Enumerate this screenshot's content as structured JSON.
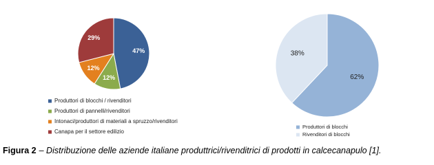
{
  "chart_data": [
    {
      "type": "pie",
      "categories": [
        "Produttori di blocchi / rivenditori",
        "Produttori di pannelli/rivenditori",
        "Intonaci/produttori di materiali a spruzzo/rivenditori",
        "Canapa per il settore edilizio"
      ],
      "values": [
        47,
        12,
        12,
        29
      ],
      "value_labels": [
        "47%",
        "12%",
        "12%",
        "29%"
      ],
      "colors": [
        "#3b6196",
        "#8bab4c",
        "#e3801f",
        "#9e3b3b"
      ]
    },
    {
      "type": "pie",
      "categories": [
        "Produttori di blocchi",
        "Rivenditori di blocchi"
      ],
      "values": [
        62,
        38
      ],
      "value_labels": [
        "62%",
        "38%"
      ],
      "colors": [
        "#95b3d7",
        "#dce6f2"
      ]
    }
  ],
  "caption": {
    "label": "Figura 2",
    "text": "– Distribuzione delle aziende italiane produttrici/rivenditrici di prodotti in calcecanapulo [1]."
  }
}
